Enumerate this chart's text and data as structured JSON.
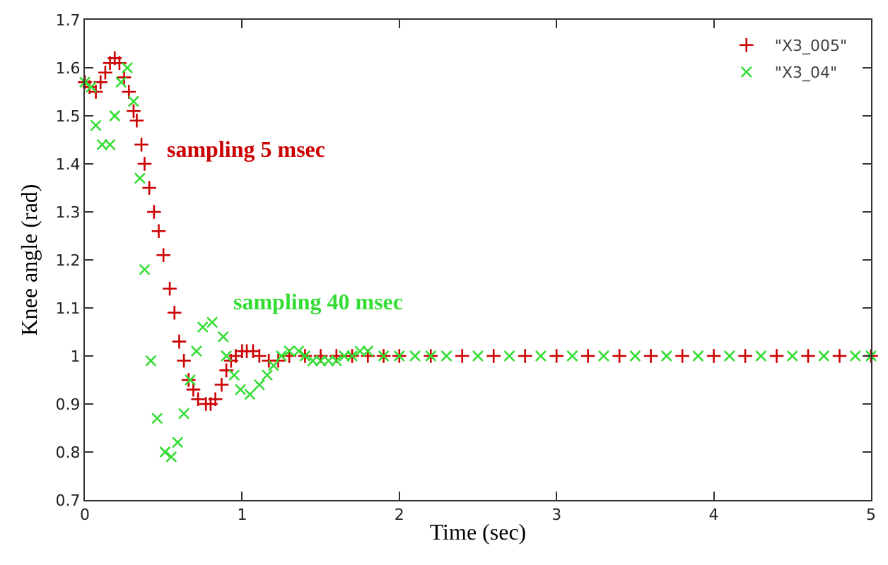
{
  "chart_data": {
    "type": "scatter",
    "xlabel": "Time (sec)",
    "ylabel": "Knee angle (rad)",
    "xlim": [
      0,
      5
    ],
    "xticks": [
      0,
      1,
      2,
      3,
      4,
      5
    ],
    "ylim": [
      0.7,
      1.7
    ],
    "yticks": [
      0.7,
      0.8,
      0.9,
      1,
      1.1,
      1.2,
      1.3,
      1.4,
      1.5,
      1.6,
      1.7
    ],
    "grid": false,
    "legend": "top right",
    "series": [
      {
        "name": "\"X3_005\"",
        "color": "#cc0000",
        "marker": "cross",
        "x": [
          0,
          0.03,
          0.07,
          0.1,
          0.13,
          0.16,
          0.19,
          0.22,
          0.25,
          0.28,
          0.31,
          0.33,
          0.36,
          0.38,
          0.41,
          0.44,
          0.47,
          0.5,
          0.54,
          0.57,
          0.6,
          0.63,
          0.66,
          0.69,
          0.72,
          0.77,
          0.8,
          0.83,
          0.87,
          0.9,
          0.93,
          0.96,
          1.0,
          1.03,
          1.07,
          1.11,
          1.17,
          1.23,
          1.3,
          1.4,
          1.5,
          1.6,
          1.7,
          1.8,
          1.9,
          2.0,
          2.2,
          2.4,
          2.6,
          2.8,
          3.0,
          3.2,
          3.4,
          3.6,
          3.8,
          4.0,
          4.2,
          4.4,
          4.6,
          4.8,
          5.0
        ],
        "values": [
          1.57,
          1.56,
          1.55,
          1.57,
          1.59,
          1.61,
          1.62,
          1.61,
          1.58,
          1.55,
          1.51,
          1.49,
          1.44,
          1.4,
          1.35,
          1.3,
          1.26,
          1.21,
          1.14,
          1.09,
          1.03,
          0.99,
          0.95,
          0.93,
          0.91,
          0.9,
          0.9,
          0.91,
          0.94,
          0.97,
          0.99,
          1.0,
          1.01,
          1.01,
          1.01,
          1.0,
          0.99,
          0.99,
          1.0,
          1.0,
          1.0,
          1.0,
          1.0,
          1.0,
          1.0,
          1.0,
          1.0,
          1.0,
          1.0,
          1.0,
          1.0,
          1.0,
          1.0,
          1.0,
          1.0,
          1.0,
          1.0,
          1.0,
          1.0,
          1.0,
          1.0
        ]
      },
      {
        "name": "\"X3_04\"",
        "color": "#33dd33",
        "marker": "x",
        "x": [
          0,
          0.04,
          0.07,
          0.11,
          0.16,
          0.19,
          0.23,
          0.27,
          0.31,
          0.35,
          0.38,
          0.42,
          0.46,
          0.51,
          0.55,
          0.59,
          0.63,
          0.67,
          0.71,
          0.75,
          0.81,
          0.88,
          0.9,
          0.95,
          0.99,
          1.05,
          1.11,
          1.16,
          1.2,
          1.25,
          1.3,
          1.36,
          1.4,
          1.45,
          1.5,
          1.55,
          1.6,
          1.65,
          1.7,
          1.75,
          1.8,
          1.9,
          2.0,
          2.1,
          2.2,
          2.3,
          2.5,
          2.7,
          2.9,
          3.1,
          3.3,
          3.5,
          3.7,
          3.9,
          4.1,
          4.3,
          4.5,
          4.7,
          4.9,
          5.0
        ],
        "values": [
          1.57,
          1.56,
          1.48,
          1.44,
          1.44,
          1.5,
          1.57,
          1.6,
          1.53,
          1.37,
          1.18,
          0.99,
          0.87,
          0.8,
          0.79,
          0.82,
          0.88,
          0.95,
          1.01,
          1.06,
          1.07,
          1.04,
          1.0,
          0.96,
          0.93,
          0.92,
          0.94,
          0.96,
          0.98,
          1.0,
          1.01,
          1.01,
          1.0,
          0.99,
          0.99,
          0.99,
          0.99,
          1.0,
          1.0,
          1.01,
          1.01,
          1.0,
          1.0,
          1.0,
          1.0,
          1.0,
          1.0,
          1.0,
          1.0,
          1.0,
          1.0,
          1.0,
          1.0,
          1.0,
          1.0,
          1.0,
          1.0,
          1.0,
          1.0,
          1.0
        ]
      }
    ],
    "annotations": [
      "sampling 5 msec",
      "sampling 40 msec"
    ]
  }
}
